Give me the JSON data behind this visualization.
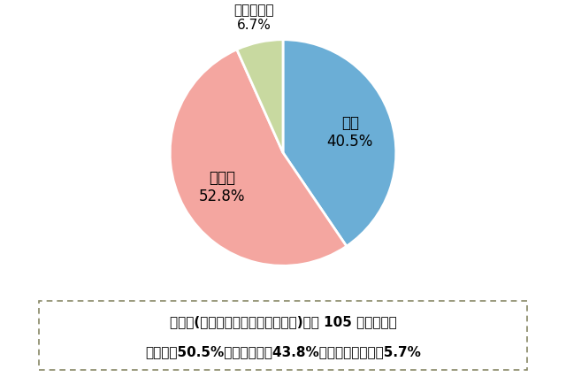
{
  "slices": [
    {
      "label": "はい",
      "pct_label": "40.5%",
      "value": 40.5,
      "color": "#6baed6"
    },
    {
      "label": "いいえ",
      "pct_label": "52.8%",
      "value": 52.8,
      "color": "#f4a6a0"
    },
    {
      "label": "わからない",
      "pct_label": "6.7%",
      "value": 6.7,
      "color": "#c8d9a0"
    }
  ],
  "note_line1": "首都圏(東京・神奈川・千葉・埼玉)在住 105 人の場合、",
  "note_line2": "「はい」50.5%、「いいえ」43.8%、「わからない」5.7%",
  "bg_color": "#ffffff",
  "box_bg": "#ffffff",
  "box_border": "#888866"
}
